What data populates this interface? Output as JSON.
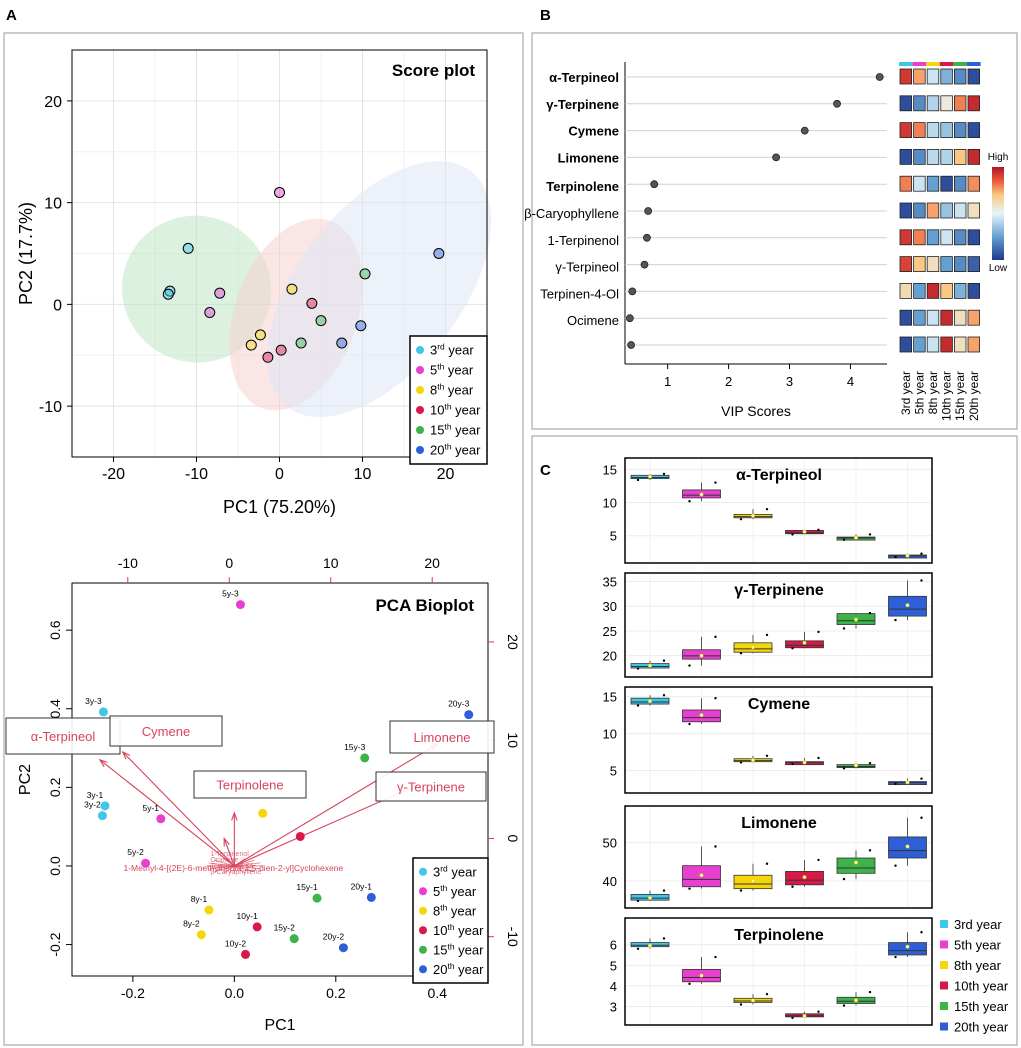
{
  "figure_labels": {
    "a": "A",
    "b": "B",
    "c": "C"
  },
  "legend_entries": [
    {
      "ordinal": "3",
      "sup": "rd",
      "word": "year",
      "color": "#3fc6e8"
    },
    {
      "ordinal": "5",
      "sup": "th",
      "word": "year",
      "color": "#e73fd0"
    },
    {
      "ordinal": "8",
      "sup": "th",
      "word": "year",
      "color": "#f5d60a"
    },
    {
      "ordinal": "10",
      "sup": "th",
      "word": "year",
      "color": "#d9184a"
    },
    {
      "ordinal": "15",
      "sup": "th",
      "word": "year",
      "color": "#3db34a"
    },
    {
      "ordinal": "20",
      "sup": "th",
      "word": "year",
      "color": "#2f5fd6"
    }
  ],
  "chart_data": [
    {
      "id": "score",
      "type": "scatter",
      "title": "Score plot",
      "xlabel": "PC1 (75.20%)",
      "ylabel": "PC2 (17.7%)",
      "xlim": [
        -25,
        25
      ],
      "ylim": [
        -15,
        25
      ],
      "xticks": [
        -20,
        -10,
        0,
        10,
        20
      ],
      "xtick_labels": [
        "-20",
        "-10",
        "0",
        "10",
        "20"
      ],
      "yticks": [
        -10,
        0,
        10,
        20
      ],
      "ytick_labels": [
        "-10",
        "0",
        "10",
        "20"
      ],
      "grid": true,
      "ellipses": [
        {
          "group": 0,
          "color": "#bfe6c6",
          "cx": -10,
          "cy": 1.5,
          "rx": 9,
          "ry": 7.2,
          "angle": -20
        },
        {
          "group": 1,
          "color": "#f6d2d0",
          "cx": 2,
          "cy": -1,
          "rx": 12,
          "ry": 6,
          "angle": 70
        },
        {
          "group": 2,
          "color": "#dfe5f6",
          "cx": 12,
          "cy": 1.5,
          "rx": 18,
          "ry": 8,
          "angle": 52
        }
      ],
      "points": [
        {
          "x": -11,
          "y": 5.5,
          "c": 0
        },
        {
          "x": -13.2,
          "y": 1.3,
          "c": 0
        },
        {
          "x": -13.4,
          "y": 1.0,
          "c": 0
        },
        {
          "x": 0,
          "y": 11,
          "c": 1
        },
        {
          "x": -7.2,
          "y": 1.1,
          "c": 1
        },
        {
          "x": -8.4,
          "y": -0.8,
          "c": 1
        },
        {
          "x": -2.3,
          "y": -3.0,
          "c": 2
        },
        {
          "x": -3.4,
          "y": -4.0,
          "c": 2
        },
        {
          "x": 1.5,
          "y": 1.5,
          "c": 2
        },
        {
          "x": -1.4,
          "y": -5.2,
          "c": 3
        },
        {
          "x": 3.9,
          "y": 0.1,
          "c": 3
        },
        {
          "x": 0.2,
          "y": -4.5,
          "c": 3
        },
        {
          "x": 2.6,
          "y": -3.8,
          "c": 4
        },
        {
          "x": 5.0,
          "y": -1.6,
          "c": 4
        },
        {
          "x": 10.3,
          "y": 3.0,
          "c": 4
        },
        {
          "x": 19.2,
          "y": 5.0,
          "c": 5
        },
        {
          "x": 9.8,
          "y": -2.1,
          "c": 5
        },
        {
          "x": 7.5,
          "y": -3.8,
          "c": 5
        }
      ]
    },
    {
      "id": "biplot",
      "type": "scatter",
      "title": "PCA Bioplot",
      "xlabel": "PC1",
      "ylabel": "PC2",
      "xlim": [
        -0.32,
        0.5
      ],
      "ylim": [
        -0.28,
        0.72
      ],
      "xticks": [
        -0.2,
        0.0,
        0.2,
        0.4
      ],
      "xtick_labels": [
        "-0.2",
        "0.0",
        "0.2",
        "0.4"
      ],
      "yticks": [
        -0.2,
        0.0,
        0.2,
        0.4,
        0.6
      ],
      "ytick_labels": [
        "-0.2",
        "0.0",
        "0.2",
        "0.4",
        "0.6"
      ],
      "top_ticks": [
        -10,
        0,
        10,
        20
      ],
      "top_tick_labels": [
        "-10",
        "0",
        "10",
        "20"
      ],
      "right_ticks": [
        -10,
        0,
        10,
        20
      ],
      "right_tick_labels": [
        "-10",
        "0",
        "10",
        "20"
      ],
      "points": [
        {
          "x": -0.258,
          "y": 0.392,
          "c": 0,
          "label": "3y-3"
        },
        {
          "x": -0.255,
          "y": 0.153,
          "c": 0,
          "label": "3y-1"
        },
        {
          "x": -0.26,
          "y": 0.128,
          "c": 0,
          "label": "3y-2"
        },
        {
          "x": 0.012,
          "y": 0.665,
          "c": 1,
          "label": "5y-3"
        },
        {
          "x": -0.145,
          "y": 0.12,
          "c": 1,
          "label": "5y-1"
        },
        {
          "x": -0.175,
          "y": 0.007,
          "c": 1,
          "label": "5y-2"
        },
        {
          "x": 0.056,
          "y": 0.134,
          "c": 2,
          "label": ""
        },
        {
          "x": -0.05,
          "y": -0.112,
          "c": 2,
          "label": "8y-1"
        },
        {
          "x": -0.065,
          "y": -0.175,
          "c": 2,
          "label": "8y-2"
        },
        {
          "x": 0.13,
          "y": 0.075,
          "c": 3,
          "label": ""
        },
        {
          "x": 0.045,
          "y": -0.155,
          "c": 3,
          "label": "10y-1"
        },
        {
          "x": 0.022,
          "y": -0.225,
          "c": 3,
          "label": "10y-2"
        },
        {
          "x": 0.257,
          "y": 0.275,
          "c": 4,
          "label": "15y-3"
        },
        {
          "x": 0.163,
          "y": -0.082,
          "c": 4,
          "label": "15y-1"
        },
        {
          "x": 0.118,
          "y": -0.185,
          "c": 4,
          "label": "15y-2"
        },
        {
          "x": 0.462,
          "y": 0.385,
          "c": 5,
          "label": "20y-3"
        },
        {
          "x": 0.27,
          "y": -0.08,
          "c": 5,
          "label": "20y-1"
        },
        {
          "x": 0.215,
          "y": -0.208,
          "c": 5,
          "label": "20y-2"
        }
      ],
      "loadings": [
        {
          "label": "α-Terpineol",
          "x": -0.265,
          "y": 0.27,
          "boxed": true
        },
        {
          "label": "Cymene",
          "x": -0.22,
          "y": 0.29,
          "boxed": true
        },
        {
          "label": "Terpinolene",
          "x": 0.0,
          "y": 0.135,
          "boxed": true
        },
        {
          "label": "Limonene",
          "x": 0.4,
          "y": 0.31,
          "boxed": true
        },
        {
          "label": "γ-Terpinene",
          "x": 0.36,
          "y": 0.205,
          "boxed": true
        },
        {
          "label": "1-Methyl-4-[(2E)-6-methylhepta-2,5-dien-2-yl]Cyclohexene",
          "x": -0.02,
          "y": 0.07,
          "boxed": false
        }
      ],
      "loading_cluster_labels": [
        "1-Terpinenol",
        "Ocimene",
        "Terpinen-4-Ol",
        "β-Caryophyllene"
      ]
    },
    {
      "id": "vip",
      "type": "scatter",
      "xlabel": "VIP Scores",
      "xlim": [
        0.3,
        4.6
      ],
      "xticks": [
        1,
        2,
        3,
        4
      ],
      "xtick_labels": [
        "1",
        "2",
        "3",
        "4"
      ],
      "rows": [
        {
          "label": "α-Terpineol",
          "bold": true,
          "vip": 4.48,
          "heat": [
            0.92,
            0.75,
            0.45,
            0.3,
            0.2,
            0.05
          ]
        },
        {
          "label": "γ-Terpinene",
          "bold": true,
          "vip": 3.78,
          "heat": [
            0.05,
            0.2,
            0.4,
            0.55,
            0.8,
            0.95
          ]
        },
        {
          "label": "Cymene",
          "bold": true,
          "vip": 3.25,
          "heat": [
            0.92,
            0.8,
            0.42,
            0.35,
            0.2,
            0.05
          ]
        },
        {
          "label": "Limonene",
          "bold": true,
          "vip": 2.78,
          "heat": [
            0.05,
            0.2,
            0.42,
            0.4,
            0.7,
            0.95
          ]
        },
        {
          "label": "Terpinolene",
          "bold": true,
          "vip": 0.78,
          "heat": [
            0.8,
            0.45,
            0.25,
            0.05,
            0.2,
            0.78
          ]
        },
        {
          "label": "β-Caryophyllene",
          "bold": false,
          "vip": 0.68,
          "heat": [
            0.05,
            0.2,
            0.75,
            0.35,
            0.45,
            0.6
          ]
        },
        {
          "label": "1-Terpinenol",
          "bold": false,
          "vip": 0.66,
          "heat": [
            0.92,
            0.8,
            0.25,
            0.45,
            0.2,
            0.05
          ]
        },
        {
          "label": "γ-Terpineol",
          "bold": false,
          "vip": 0.62,
          "heat": [
            0.9,
            0.7,
            0.6,
            0.25,
            0.2,
            0.1
          ]
        },
        {
          "label": "Terpinen-4-Ol",
          "bold": false,
          "vip": 0.42,
          "heat": [
            0.62,
            0.25,
            0.95,
            0.7,
            0.3,
            0.05
          ]
        },
        {
          "label": "Ocimene",
          "bold": false,
          "vip": 0.38,
          "heat": [
            0.05,
            0.25,
            0.45,
            0.95,
            0.6,
            0.75
          ]
        },
        {
          "label": "",
          "bold": false,
          "vip": 0.4,
          "heat": [
            0.05,
            0.25,
            0.45,
            0.95,
            0.6,
            0.75
          ]
        }
      ],
      "heat_columns": [
        "3rd year",
        "5th year",
        "8th year",
        "10th year",
        "15th year",
        "20th year"
      ],
      "scale_high": "High",
      "scale_low": "Low"
    },
    {
      "id": "boxplots",
      "type": "box",
      "categories": [
        "3rd year",
        "5th year",
        "8th year",
        "10th year",
        "15th year",
        "20th year"
      ],
      "panels": [
        {
          "title": "α-Terpineol",
          "ylim": [
            1.5,
            15.8
          ],
          "yticks": [
            5,
            10,
            15
          ],
          "ytick_labels": [
            "5",
            "10",
            "15"
          ],
          "boxes": [
            [
              13.4,
              13.6,
              14.1,
              14.3
            ],
            [
              10.2,
              10.7,
              11.9,
              13.0
            ],
            [
              7.5,
              7.7,
              8.2,
              9.0
            ],
            [
              5.2,
              5.3,
              5.8,
              5.9
            ],
            [
              4.4,
              4.6,
              4.8,
              5.2
            ],
            [
              1.8,
              1.9,
              2.1,
              2.3
            ]
          ],
          "means": [
            13.9,
            11.2,
            8.0,
            5.6,
            4.7,
            2.0
          ]
        },
        {
          "title": "γ-Terpinene",
          "ylim": [
            16.5,
            35.5
          ],
          "yticks": [
            20,
            25,
            30,
            35
          ],
          "ytick_labels": [
            "20",
            "25",
            "30",
            "35"
          ],
          "boxes": [
            [
              17.4,
              17.5,
              18.4,
              19.0
            ],
            [
              18.0,
              19.3,
              21.2,
              23.8
            ],
            [
              20.5,
              20.7,
              22.6,
              24.2
            ],
            [
              21.5,
              21.6,
              23.0,
              24.8
            ],
            [
              25.5,
              26.3,
              28.5,
              28.6
            ],
            [
              27.2,
              28.0,
              32.0,
              35.2
            ]
          ],
          "means": [
            18.0,
            20.0,
            21.7,
            22.6,
            27.3,
            30.2
          ]
        },
        {
          "title": "Cymene",
          "ylim": [
            2.5,
            15.5
          ],
          "yticks": [
            5,
            10,
            15
          ],
          "ytick_labels": [
            "5",
            "10",
            "15"
          ],
          "boxes": [
            [
              13.8,
              14.0,
              14.8,
              15.2
            ],
            [
              11.3,
              11.6,
              13.2,
              14.8
            ],
            [
              6.1,
              6.2,
              6.6,
              7.0
            ],
            [
              5.9,
              6.0,
              6.2,
              6.7
            ],
            [
              5.3,
              5.4,
              5.8,
              6.0
            ],
            [
              3.2,
              3.3,
              3.5,
              3.9
            ]
          ],
          "means": [
            14.4,
            12.5,
            6.4,
            6.1,
            5.7,
            3.4
          ]
        },
        {
          "title": "Limonene",
          "ylim": [
            34,
            58
          ],
          "yticks": [
            40,
            50
          ],
          "ytick_labels": [
            "40",
            "50"
          ],
          "boxes": [
            [
              34.8,
              35.0,
              36.5,
              37.5
            ],
            [
              38.0,
              38.5,
              44.0,
              49.0
            ],
            [
              37.5,
              38.0,
              41.5,
              44.5
            ],
            [
              38.5,
              39.0,
              42.5,
              45.5
            ],
            [
              40.5,
              42.0,
              46.0,
              48.0
            ],
            [
              44.0,
              46.0,
              51.5,
              56.5
            ]
          ],
          "means": [
            35.6,
            41.5,
            40.0,
            41.0,
            44.8,
            49.0
          ]
        },
        {
          "title": "Terpinolene",
          "ylim": [
            2.3,
            7.0
          ],
          "yticks": [
            3,
            4,
            5,
            6
          ],
          "ytick_labels": [
            "3",
            "4",
            "5",
            "6"
          ],
          "boxes": [
            [
              5.8,
              5.9,
              6.1,
              6.3
            ],
            [
              4.1,
              4.2,
              4.8,
              5.4
            ],
            [
              3.1,
              3.2,
              3.4,
              3.6
            ],
            [
              2.45,
              2.5,
              2.65,
              2.75
            ],
            [
              3.05,
              3.15,
              3.45,
              3.7
            ],
            [
              5.4,
              5.5,
              6.1,
              6.6
            ]
          ],
          "means": [
            5.95,
            4.5,
            3.3,
            2.55,
            3.3,
            5.9
          ]
        }
      ]
    }
  ]
}
